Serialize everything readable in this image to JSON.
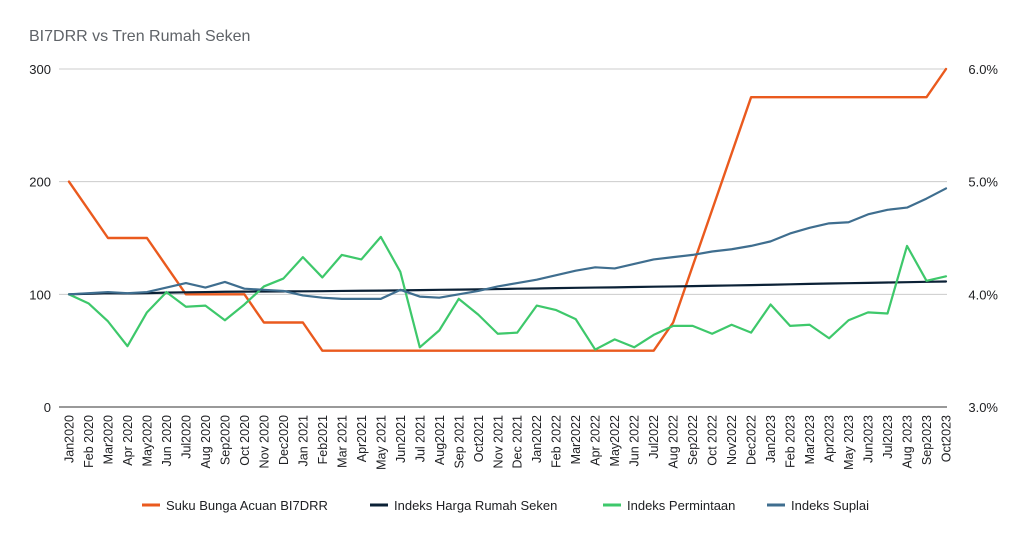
{
  "chart_data": {
    "type": "line",
    "title": "BI7DRR vs Tren Rumah Seken",
    "xlabel": "",
    "ylabel": "",
    "ylim": [
      0,
      300
    ],
    "y2lim": [
      0.03,
      0.06
    ],
    "yticks": [
      "0",
      "100",
      "200",
      "300"
    ],
    "y2ticks": [
      "3.0%",
      "4.0%",
      "5.0%",
      "6.0%"
    ],
    "grid": true,
    "legend_position": "bottom",
    "categories": [
      "Jan2020",
      "Feb 2020",
      "Mar2020",
      "Apr 2020",
      "May2020",
      "Jun 2020",
      "Jul2020",
      "Aug 2020",
      "Sep2020",
      "Oct 2020",
      "Nov 2020",
      "Dec2020",
      "Jan 2021",
      "Feb2021",
      "Mar 2021",
      "Apr2021",
      "May 2021",
      "Jun2021",
      "Jul 2021",
      "Aug2021",
      "Sep 2021",
      "Oct2021",
      "Nov 2021",
      "Dec 2021",
      "Jan2022",
      "Feb 2022",
      "Mar2022",
      "Apr 2022",
      "May2022",
      "Jun 2022",
      "Jul2022",
      "Aug 2022",
      "Sep2022",
      "Oct 2022",
      "Nov2022",
      "Dec2022",
      "Jan2023",
      "Feb 2023",
      "Mar2023",
      "Apr2023",
      "May 2023",
      "Jun2023",
      "Jul2023",
      "Aug 2023",
      "Sep2023",
      "Oct2023"
    ],
    "series": [
      {
        "name": "Suku Bunga Acuan BI7DRR",
        "axis": "right",
        "color": "#ea5a1e",
        "values": [
          0.05,
          0.0475,
          0.045,
          0.045,
          0.045,
          0.0425,
          0.04,
          0.04,
          0.04,
          0.04,
          0.0375,
          0.0375,
          0.0375,
          0.035,
          0.035,
          0.035,
          0.035,
          0.035,
          0.035,
          0.035,
          0.035,
          0.035,
          0.035,
          0.035,
          0.035,
          0.035,
          0.035,
          0.035,
          0.035,
          0.035,
          0.035,
          0.0375,
          0.0425,
          0.0475,
          0.0525,
          0.0575,
          0.0575,
          0.0575,
          0.0575,
          0.0575,
          0.0575,
          0.0575,
          0.0575,
          0.0575,
          0.0575,
          0.06
        ]
      },
      {
        "name": "Indeks Harga Rumah Seken",
        "axis": "left",
        "color": "#0b2136",
        "values": [
          100,
          100.5,
          101,
          100.8,
          101,
          101.5,
          101.8,
          102,
          102.3,
          102.4,
          102.5,
          102.6,
          102.7,
          102.8,
          103,
          103.2,
          103.3,
          103.5,
          103.7,
          104,
          104.2,
          104.4,
          104.7,
          105,
          105.2,
          105.5,
          105.8,
          106,
          106.2,
          106.5,
          106.8,
          107,
          107.3,
          107.6,
          107.9,
          108.2,
          108.5,
          108.9,
          109.3,
          109.6,
          109.9,
          110.2,
          110.5,
          110.8,
          111.1,
          111.4
        ]
      },
      {
        "name": "Indeks Permintaan",
        "axis": "left",
        "color": "#3ec86b",
        "values": [
          100,
          92,
          76,
          54,
          84,
          102,
          89,
          90,
          77,
          91,
          107,
          114,
          133,
          115,
          135,
          131,
          151,
          120,
          53,
          68,
          96,
          82,
          65,
          66,
          90,
          86,
          78,
          51,
          60,
          53,
          64,
          72,
          72,
          65,
          73,
          66,
          91,
          72,
          73,
          61,
          77,
          84,
          83,
          143,
          112,
          116
        ]
      },
      {
        "name": "Indeks Suplai",
        "axis": "left",
        "color": "#3f6e8f",
        "values": [
          100,
          101,
          102,
          101,
          102,
          106,
          110,
          106,
          111,
          105,
          104,
          103,
          99,
          97,
          96,
          96,
          96,
          104,
          98,
          97,
          100,
          103,
          107,
          110,
          113,
          117,
          121,
          124,
          123,
          127,
          131,
          133,
          135,
          138,
          140,
          143,
          147,
          154,
          159,
          163,
          164,
          171,
          175,
          177,
          185,
          194
        ]
      }
    ]
  }
}
